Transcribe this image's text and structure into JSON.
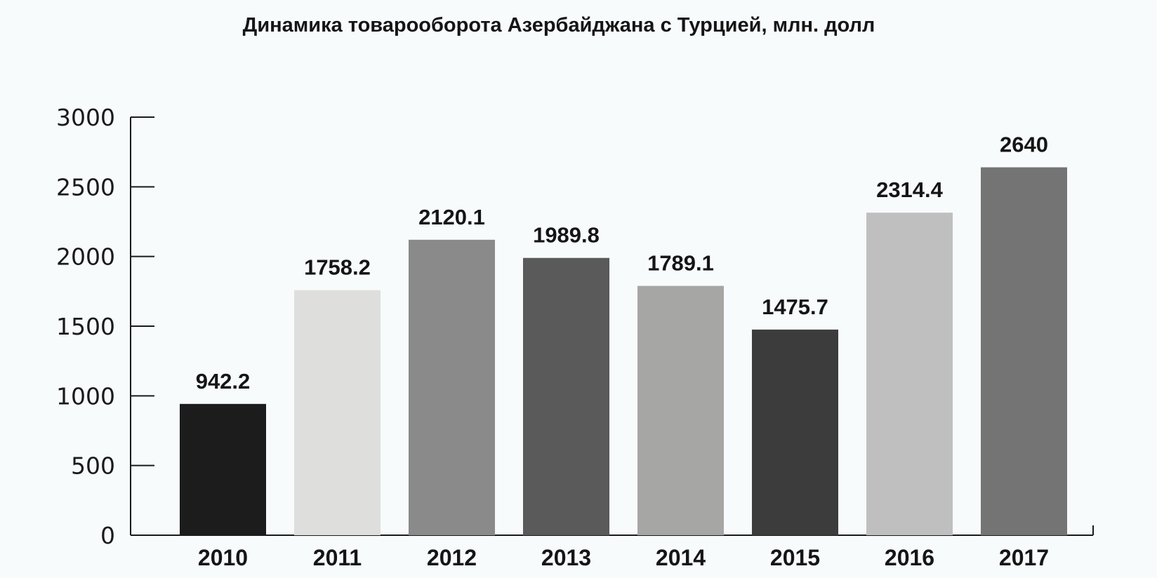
{
  "chart_data": {
    "type": "bar",
    "title": "Динамика товарооборота Азербайджана с Турцией, млн. долл",
    "xlabel": "",
    "ylabel": "",
    "categories": [
      "2010",
      "2011",
      "2012",
      "2013",
      "2014",
      "2015",
      "2016",
      "2017"
    ],
    "values": [
      942.2,
      1758.2,
      2120.1,
      1989.8,
      1789.1,
      1475.7,
      2314.4,
      2640
    ],
    "value_labels": [
      "942.2",
      "1758.2",
      "2120.1",
      "1989.8",
      "1789.1",
      "1475.7",
      "2314.4",
      "2640"
    ],
    "colors": [
      "#1c1c1c",
      "#dededc",
      "#8a8a8a",
      "#5a5a5a",
      "#a6a6a4",
      "#3c3c3c",
      "#bfbfbf",
      "#747474"
    ],
    "ylim": [
      0,
      3000
    ],
    "yticks": [
      0,
      500,
      1000,
      1500,
      2000,
      2500,
      3000
    ],
    "ytick_labels": [
      "0",
      "500",
      "1000",
      "1500",
      "2000",
      "2500",
      "3000"
    ],
    "grid": false,
    "legend": "none"
  }
}
